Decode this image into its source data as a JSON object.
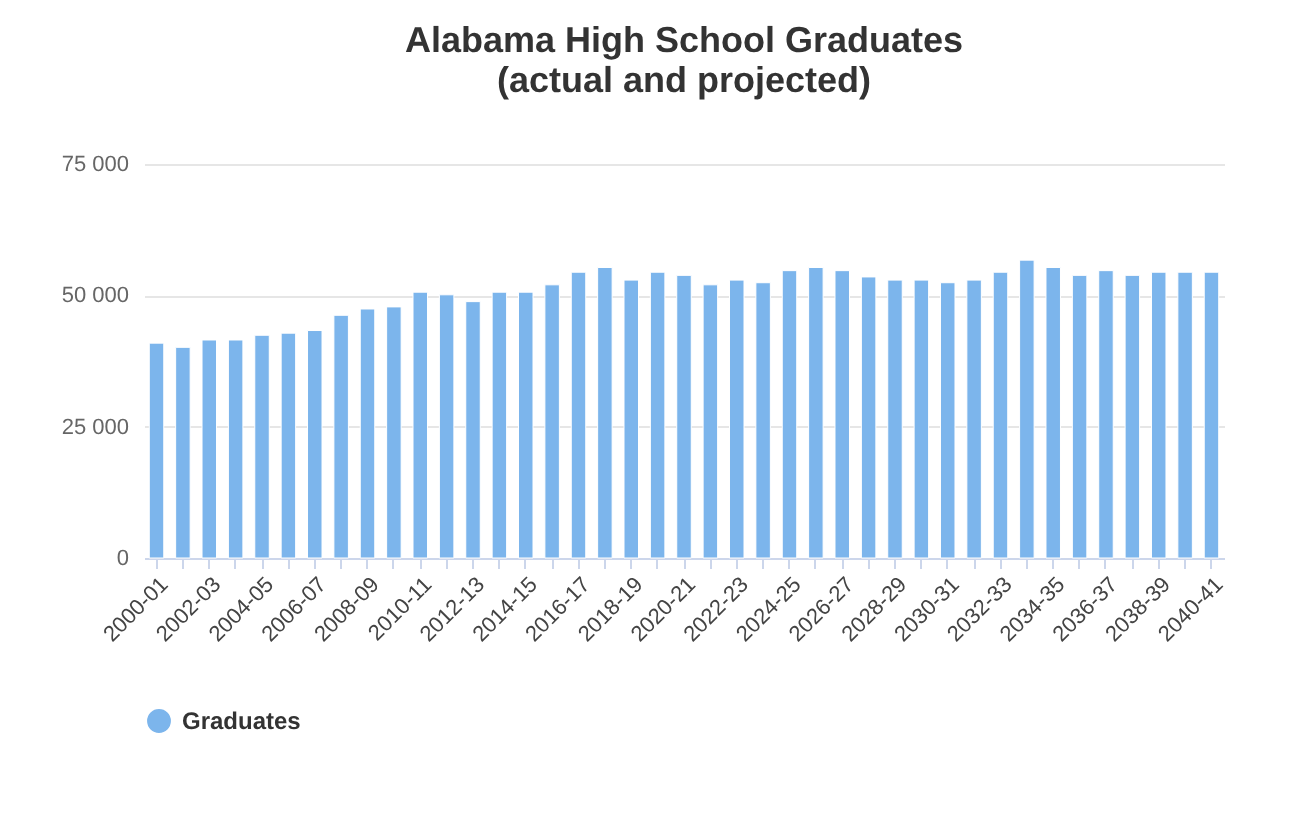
{
  "chart_data": {
    "type": "bar",
    "title": "Alabama High School Graduates\n(actual and projected)",
    "categories": [
      "2000-01",
      null,
      "2002-03",
      null,
      "2004-05",
      null,
      "2006-07",
      null,
      "2008-09",
      null,
      "2010-11",
      null,
      "2012-13",
      null,
      "2014-15",
      null,
      "2016-17",
      null,
      "2018-19",
      null,
      "2020-21",
      null,
      "2022-23",
      null,
      "2024-25",
      null,
      "2026-27",
      null,
      "2028-29",
      null,
      "2030-31",
      null,
      "2032-33",
      null,
      "2034-35",
      null,
      "2036-37",
      null,
      "2038-39",
      null,
      "2040-41"
    ],
    "series": [
      {
        "name": "Graduates",
        "color": "#7cb5ec",
        "values": [
          40900,
          40100,
          41500,
          41500,
          42400,
          42800,
          43300,
          46200,
          47400,
          47800,
          50600,
          50100,
          48800,
          50600,
          50600,
          52000,
          54400,
          55300,
          52900,
          54400,
          53800,
          52000,
          52900,
          52400,
          54700,
          55300,
          54700,
          53500,
          52900,
          52900,
          52400,
          52900,
          54400,
          56700,
          55300,
          53800,
          54700,
          53800,
          54400,
          54400,
          54400
        ]
      }
    ],
    "ylim": [
      0,
      75000
    ],
    "yticks": [
      {
        "value": 0,
        "label": "0"
      },
      {
        "value": 25000,
        "label": "25 000"
      },
      {
        "value": 50000,
        "label": "50 000"
      },
      {
        "value": 75000,
        "label": "75 000"
      }
    ],
    "grid": "y",
    "legend": "bottom"
  }
}
